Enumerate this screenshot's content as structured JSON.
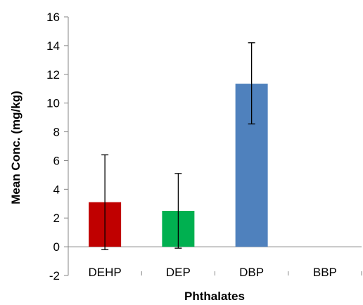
{
  "chart_data": {
    "type": "bar",
    "title": "",
    "xlabel": "Phthalates",
    "ylabel": "Mean Conc. (mg/kg)",
    "categories": [
      "DEHP",
      "DEP",
      "DBP",
      "BBP"
    ],
    "values": [
      3.1,
      2.5,
      11.35,
      null
    ],
    "error_bars": [
      {
        "low": -0.2,
        "high": 6.4
      },
      {
        "low": -0.1,
        "high": 5.1
      },
      {
        "low": 8.55,
        "high": 14.2
      },
      null
    ],
    "bar_colors": [
      "#c00000",
      "#00b050",
      "#4f81bd",
      null
    ],
    "ylim": [
      -2,
      16
    ],
    "yticks": [
      -2,
      0,
      2,
      4,
      6,
      8,
      10,
      12,
      14,
      16
    ],
    "ytick_labels": [
      "-2",
      "0",
      "2",
      "4",
      "6",
      "8",
      "10",
      "12",
      "14",
      "16"
    ],
    "grid": false,
    "legend": "none"
  }
}
